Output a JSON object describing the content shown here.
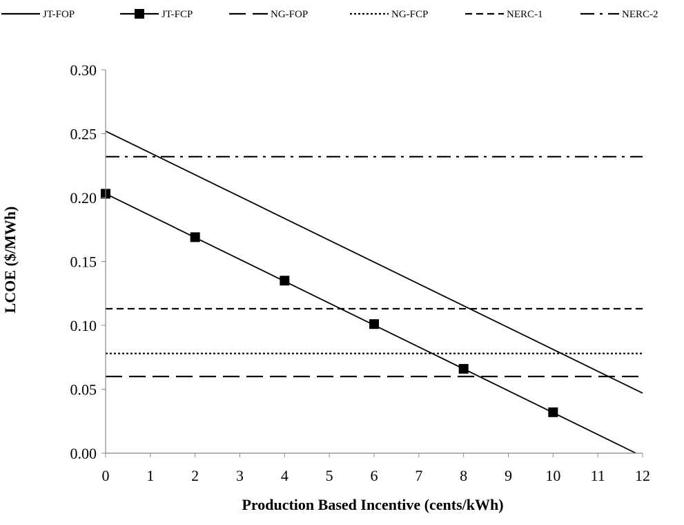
{
  "chart_data": {
    "type": "line",
    "title": "",
    "xlabel": "Production Based Incentive (cents/kWh)",
    "ylabel": "LCOE ($/MWh)",
    "xlim": [
      0,
      12
    ],
    "ylim": [
      0,
      0.3
    ],
    "x_ticks": [
      "0",
      "1",
      "2",
      "3",
      "4",
      "5",
      "6",
      "7",
      "8",
      "9",
      "10",
      "11",
      "12"
    ],
    "y_ticks": [
      "0.00",
      "0.05",
      "0.10",
      "0.15",
      "0.20",
      "0.25",
      "0.30"
    ],
    "grid": false,
    "legend_position": "top",
    "series": [
      {
        "name": "JT-FOP",
        "style": "solid",
        "marker": "none",
        "x": [
          0,
          12
        ],
        "y": [
          0.252,
          0.047
        ]
      },
      {
        "name": "JT-FCP",
        "style": "solid",
        "marker": "square",
        "x": [
          0,
          2,
          4,
          6,
          8,
          10
        ],
        "y": [
          0.203,
          0.169,
          0.135,
          0.101,
          0.066,
          0.032
        ],
        "line_x": [
          0,
          11.85
        ],
        "line_y": [
          0.203,
          0.0
        ]
      },
      {
        "name": "NG-FOP",
        "style": "long-dash",
        "marker": "none",
        "x": [
          0,
          12
        ],
        "y": [
          0.06,
          0.06
        ]
      },
      {
        "name": "NG-FCP",
        "style": "dotted",
        "marker": "none",
        "x": [
          0,
          12
        ],
        "y": [
          0.078,
          0.078
        ]
      },
      {
        "name": "NERC-1",
        "style": "dashed",
        "marker": "none",
        "x": [
          0,
          12
        ],
        "y": [
          0.113,
          0.113
        ]
      },
      {
        "name": "NERC-2",
        "style": "dash-dot",
        "marker": "none",
        "x": [
          0,
          12
        ],
        "y": [
          0.232,
          0.232
        ]
      }
    ],
    "colors": {
      "line": "#000000",
      "background": "#ffffff"
    }
  }
}
